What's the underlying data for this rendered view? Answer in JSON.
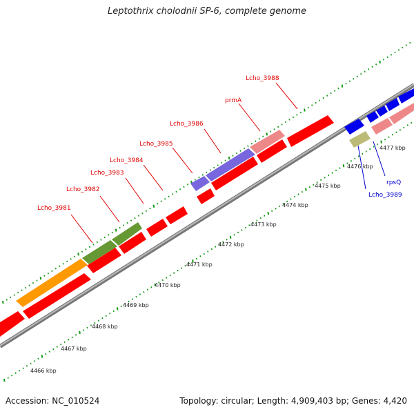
{
  "title": "Leptothrix cholodnii SP-6, complete genome",
  "footer": {
    "accession": "Accession: NC_010524",
    "topology": "Topology: circular; Length: 4,909,403 bp; Genes: 4,420"
  },
  "ticks": [
    {
      "kbp": 4466,
      "label": "4466 kbp"
    },
    {
      "kbp": 4467,
      "label": "4467 kbp"
    },
    {
      "kbp": 4468,
      "label": "4468 kbp"
    },
    {
      "kbp": 4469,
      "label": "4469 kbp"
    },
    {
      "kbp": 4470,
      "label": "4470 kbp"
    },
    {
      "kbp": 4471,
      "label": "4471 kbp"
    },
    {
      "kbp": 4472,
      "label": "4472 kbp"
    },
    {
      "kbp": 4473,
      "label": "4473 kbp"
    },
    {
      "kbp": 4474,
      "label": "4474 kbp"
    },
    {
      "kbp": 4475,
      "label": "4475 kbp"
    },
    {
      "kbp": 4476,
      "label": "4476 kbp"
    },
    {
      "kbp": 4477,
      "label": "4477 kbp"
    }
  ],
  "gene_labels": [
    {
      "text": "Lcho_3981",
      "color": "#e00000"
    },
    {
      "text": "Lcho_3982",
      "color": "#e00000"
    },
    {
      "text": "Lcho_3983",
      "color": "#e00000"
    },
    {
      "text": "Lcho_3984",
      "color": "#e00000"
    },
    {
      "text": "Lcho_3985",
      "color": "#e00000"
    },
    {
      "text": "Lcho_3986",
      "color": "#e00000"
    },
    {
      "text": "prmA",
      "color": "#e00000"
    },
    {
      "text": "Lcho_3988",
      "color": "#e00000"
    },
    {
      "text": "Lcho_3989",
      "color": "#0000cc"
    },
    {
      "text": "rpsQ",
      "color": "#0000cc"
    }
  ],
  "colors": {
    "cds_forward": "#ff0000",
    "cds_reverse": "#0000ff",
    "orange": "#ff9900",
    "olive": "#669933",
    "purple": "#7766dd",
    "pink": "#ee8888",
    "khaki": "#bbbb77",
    "backbone": "#888888",
    "tick_dots": "#119911"
  }
}
